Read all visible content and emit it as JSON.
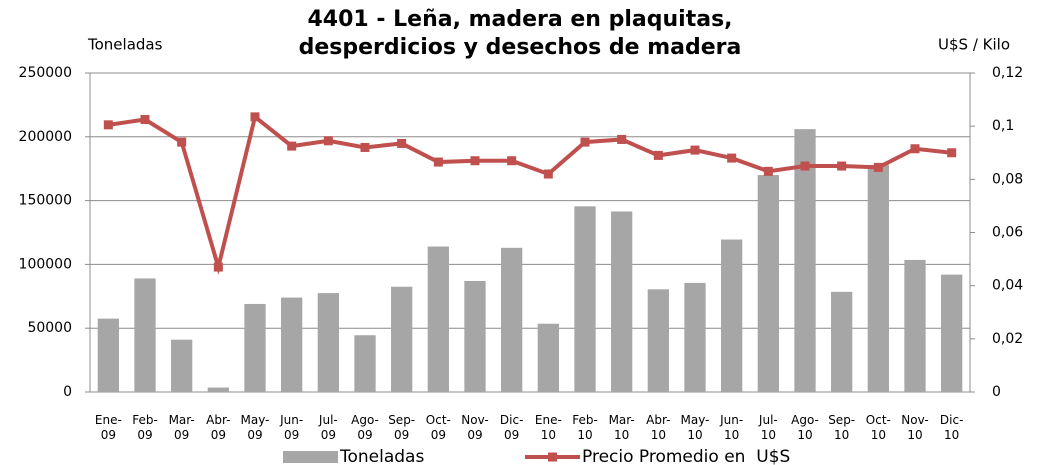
{
  "chart_data": {
    "type": "bar-line",
    "title": [
      "4401 - Leña, madera en plaquitas,",
      "desperdicios y desechos de madera"
    ],
    "y_label": "Toneladas",
    "y2_label": "U$S / Kilo",
    "categories": [
      "Ene-09",
      "Feb-09",
      "Mar-09",
      "Abr-09",
      "May-09",
      "Jun-09",
      "Jul-09",
      "Ago-09",
      "Sep-09",
      "Oct-09",
      "Nov-09",
      "Dic-09",
      "Ene-10",
      "Feb-10",
      "Mar-10",
      "Abr-10",
      "May-10",
      "Jun-10",
      "Jul-10",
      "Ago-10",
      "Sep-10",
      "Oct-10",
      "Nov-10",
      "Dic-10"
    ],
    "series": [
      {
        "name": "Toneladas",
        "type": "bar",
        "color": "#a6a6a6",
        "values": [
          57500,
          89000,
          41000,
          3500,
          69000,
          74000,
          77500,
          44500,
          82500,
          114000,
          87000,
          113000,
          53500,
          145500,
          141500,
          80500,
          85500,
          119500,
          170000,
          206000,
          78500,
          178000,
          103500,
          92000
        ]
      },
      {
        "name": "Precio Promedio en  U$S",
        "type": "line",
        "axis": "y2",
        "color": "#c0504d",
        "values": [
          0.1005,
          0.1025,
          0.094,
          0.047,
          0.1035,
          0.0925,
          0.0945,
          0.092,
          0.0935,
          0.0865,
          0.087,
          0.087,
          0.082,
          0.094,
          0.095,
          0.089,
          0.091,
          0.088,
          0.083,
          0.085,
          0.085,
          0.0845,
          0.0915,
          0.09
        ]
      }
    ],
    "ylim": [
      0,
      250000
    ],
    "yticks": [
      0,
      50000,
      100000,
      150000,
      200000,
      250000
    ],
    "y2lim": [
      0,
      0.12
    ],
    "y2ticks": [
      0,
      {
        "value": 0.02,
        "label": "0,02"
      },
      {
        "value": 0.04,
        "label": "0,04"
      },
      {
        "value": 0.06,
        "label": "0,06"
      },
      {
        "value": 0.08,
        "label": "0,08"
      },
      {
        "value": 0.1,
        "label": "0,1"
      },
      {
        "value": 0.12,
        "label": "0,12"
      }
    ],
    "grid": true,
    "legend": "bottom"
  }
}
